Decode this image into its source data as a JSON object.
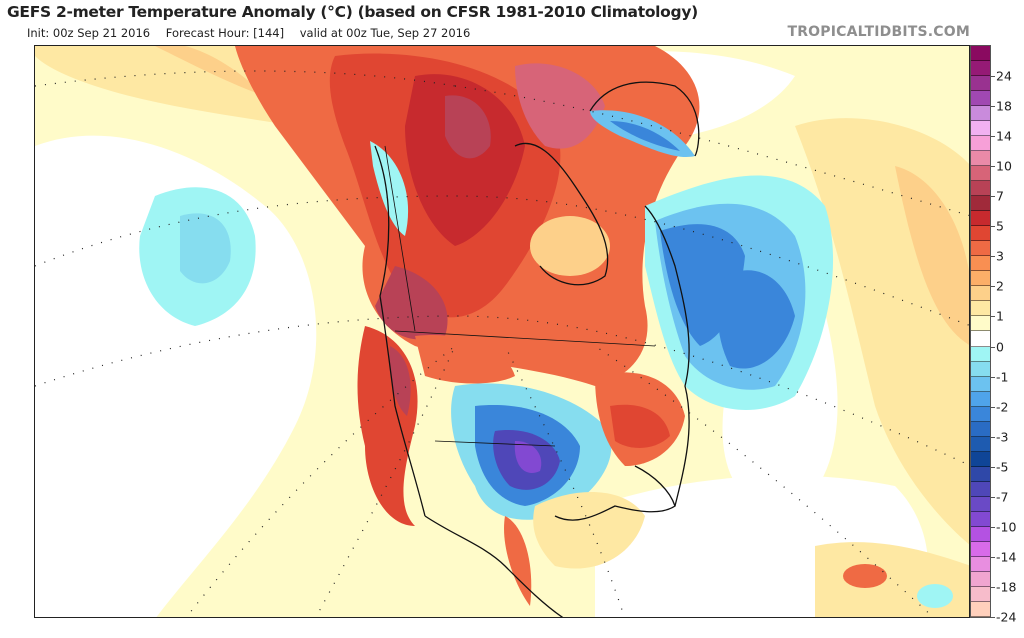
{
  "header": {
    "title": "GEFS 2-meter Temperature Anomaly (°C) (based on CFSR 1981-2010 Climatology)",
    "init": "Init: 00z Sep 21 2016",
    "forecast_hour": "Forecast Hour: [144]",
    "valid": "valid at 00z Tue, Sep 27 2016",
    "brand": "TROPICALTIDBITS.COM"
  },
  "colorbar": {
    "unit": "°C",
    "segment_colors": [
      "#8a0a60",
      "#951a75",
      "#993290",
      "#a048b2",
      "#c98bdc",
      "#f1b1f1",
      "#f7a0d8",
      "#ea8aa8",
      "#d76478",
      "#b84256",
      "#a02a3a",
      "#c72a2e",
      "#e04632",
      "#ef6a44",
      "#f98f52",
      "#fcae68",
      "#fdd08a",
      "#fee8a3",
      "#fffbc9",
      "#ffffff",
      "#9ff5f4",
      "#86ddef",
      "#6cc2f0",
      "#4fa4ea",
      "#3a86da",
      "#2a6cc4",
      "#1e5bb0",
      "#0f4597",
      "#2f48a8",
      "#4f47b8",
      "#6a4ac6",
      "#8249d2",
      "#b452e2",
      "#d86be9",
      "#e88ee0",
      "#f0a5d0",
      "#f7bccb",
      "#ffd0bc"
    ],
    "labels": [
      "24",
      "18",
      "14",
      "10",
      "7",
      "5",
      "3",
      "2",
      "1",
      "0",
      "-1",
      "-2",
      "-3",
      "-5",
      "-7",
      "-10",
      "-14",
      "-18",
      "-24"
    ]
  },
  "map": {
    "region": "North America",
    "field": "2-meter temperature anomaly"
  }
}
